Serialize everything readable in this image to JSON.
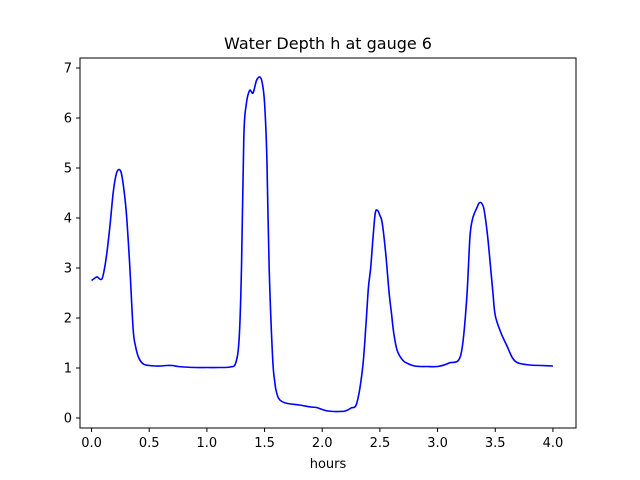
{
  "chart_data": {
    "type": "line",
    "title": "Water Depth h at gauge 6",
    "xlabel": "hours",
    "ylabel": "",
    "xlim": [
      -0.1,
      4.2
    ],
    "ylim": [
      -0.2,
      7.2
    ],
    "xticks": [
      0.0,
      0.5,
      1.0,
      1.5,
      2.0,
      2.5,
      3.0,
      3.5,
      4.0
    ],
    "xtick_labels": [
      "0.0",
      "0.5",
      "1.0",
      "1.5",
      "2.0",
      "2.5",
      "3.0",
      "3.5",
      "4.0"
    ],
    "yticks": [
      0,
      1,
      2,
      3,
      4,
      5,
      6,
      7
    ],
    "ytick_labels": [
      "0",
      "1",
      "2",
      "3",
      "4",
      "5",
      "6",
      "7"
    ],
    "grid": false,
    "series": [
      {
        "color": "#0000ff",
        "x": [
          0.0,
          0.03,
          0.05,
          0.08,
          0.1,
          0.13,
          0.16,
          0.19,
          0.22,
          0.25,
          0.27,
          0.3,
          0.33,
          0.36,
          0.38,
          0.41,
          0.45,
          0.5,
          0.55,
          0.6,
          0.65,
          0.7,
          0.75,
          0.8,
          0.9,
          1.0,
          1.1,
          1.2,
          1.25,
          1.28,
          1.3,
          1.32,
          1.34,
          1.37,
          1.4,
          1.43,
          1.46,
          1.48,
          1.5,
          1.52,
          1.54,
          1.57,
          1.59,
          1.6,
          1.62,
          1.65,
          1.7,
          1.8,
          1.9,
          1.95,
          2.0,
          2.05,
          2.1,
          2.15,
          2.2,
          2.25,
          2.3,
          2.35,
          2.38,
          2.4,
          2.42,
          2.44,
          2.46,
          2.48,
          2.5,
          2.52,
          2.55,
          2.58,
          2.6,
          2.62,
          2.65,
          2.7,
          2.75,
          2.8,
          2.85,
          2.9,
          3.0,
          3.1,
          3.2,
          3.25,
          3.28,
          3.3,
          3.32,
          3.34,
          3.36,
          3.38,
          3.4,
          3.42,
          3.44,
          3.46,
          3.48,
          3.5,
          3.55,
          3.6,
          3.65,
          3.7,
          3.8,
          3.9,
          4.0
        ],
        "y": [
          2.75,
          2.8,
          2.82,
          2.77,
          2.85,
          3.25,
          3.85,
          4.55,
          4.92,
          4.95,
          4.75,
          4.15,
          3.1,
          1.8,
          1.45,
          1.2,
          1.08,
          1.05,
          1.04,
          1.04,
          1.05,
          1.05,
          1.03,
          1.02,
          1.01,
          1.01,
          1.01,
          1.02,
          1.1,
          1.6,
          3.0,
          5.6,
          6.25,
          6.55,
          6.5,
          6.75,
          6.82,
          6.7,
          6.3,
          5.2,
          3.0,
          1.2,
          0.7,
          0.55,
          0.4,
          0.33,
          0.29,
          0.26,
          0.22,
          0.21,
          0.17,
          0.14,
          0.13,
          0.13,
          0.14,
          0.2,
          0.3,
          1.0,
          1.9,
          2.6,
          3.0,
          3.6,
          4.1,
          4.15,
          4.05,
          3.9,
          3.3,
          2.5,
          2.1,
          1.7,
          1.35,
          1.15,
          1.08,
          1.04,
          1.03,
          1.03,
          1.03,
          1.1,
          1.25,
          2.3,
          3.6,
          3.95,
          4.1,
          4.2,
          4.3,
          4.3,
          4.2,
          3.9,
          3.5,
          3.0,
          2.5,
          2.05,
          1.7,
          1.45,
          1.2,
          1.1,
          1.06,
          1.05,
          1.04
        ]
      }
    ]
  }
}
